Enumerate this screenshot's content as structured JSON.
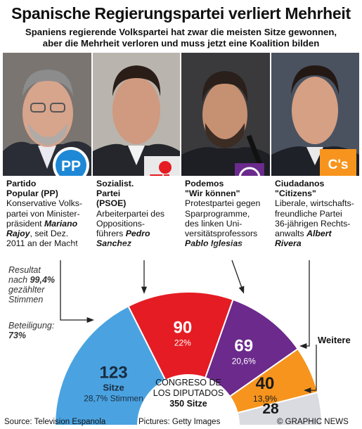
{
  "header": {
    "title": "Spanische Regierungspartei verliert Mehrheit",
    "subtitle_line1": "Spaniens regierende Volkspartei hat zwar die meisten Sitze gewonnen,",
    "subtitle_line2": "aber die Mehrheit verloren und muss jetzt eine Koalition bilden"
  },
  "parties": [
    {
      "name_line1": "Partido",
      "name_line2": "Popular (PP)",
      "desc_line1": "Konservative Volks-",
      "desc_line2": "partei von Minister-",
      "desc_line3": "präsident ",
      "desc_name1": "Mariano",
      "desc_name2": "Rajoy",
      "desc_line5": ", seit Dez.",
      "desc_line6": "2011 an der Macht",
      "logo_text": "PP",
      "color": "#4aa3e0"
    },
    {
      "name_line1": "Sozialist.",
      "name_line2": "Partei",
      "name_line3": "(PSOE)",
      "desc_line1": "Arbeiterpartei des",
      "desc_line2": "Oppositions-",
      "desc_line3": "führers ",
      "desc_name1": "Pedro",
      "desc_name2": "Sanchez",
      "color": "#e51c23"
    },
    {
      "name_line1": "Podemos",
      "name_line2": "\"Wir können\"",
      "desc_line1": "Protestpartei gegen",
      "desc_line2": "Sparprogramme,",
      "desc_line3": "des linken Uni-",
      "desc_line4": "versitätsprofessors",
      "desc_name": "Pablo Iglesias",
      "color": "#6b2a8c"
    },
    {
      "name_line1": "Ciudadanos",
      "name_line2": "\"Citizens\"",
      "desc_line1": "Liberale, wirtschafts-",
      "desc_line2": "freundliche Partei",
      "desc_line3": "36-jährigen Rechts-",
      "desc_line4": "anwalts ",
      "desc_name1": "Albert",
      "desc_name2": "Rivera",
      "logo_text": "C's",
      "color": "#f7941d"
    }
  ],
  "result_note": {
    "line1": "Resultat",
    "line2a": "nach ",
    "line2b": "99,4%",
    "line3": "gezählter",
    "line4": "Stimmen"
  },
  "turnout": {
    "label": "Beteiligung:",
    "value": "73%"
  },
  "chart_data": {
    "type": "pie",
    "subtype": "half-donut (parliament)",
    "center_line1": "CONGRESO DE",
    "center_line2": "LOS DIPUTADOS",
    "center_total": "350 Sitze",
    "slices": [
      {
        "party": "PP",
        "seats": 123,
        "seats_label": "123",
        "unit": "Sitze",
        "percent_label": "28,7% Stimmen",
        "color": "#4aa3e0"
      },
      {
        "party": "PSOE",
        "seats": 90,
        "seats_label": "90",
        "percent_label": "22%",
        "color": "#e51c23"
      },
      {
        "party": "Podemos",
        "seats": 69,
        "seats_label": "69",
        "percent_label": "20,6%",
        "color": "#6b2a8c"
      },
      {
        "party": "Ciudadanos",
        "seats": 40,
        "seats_label": "40",
        "percent_label": "13,9%",
        "color": "#f7941d"
      },
      {
        "party": "Weitere",
        "seats": 28,
        "seats_label": "28",
        "percent_label": "",
        "color": "#d9dbe0"
      }
    ],
    "weitere_label": "Weitere"
  },
  "footer": {
    "source": "Source: Television Espanola",
    "pictures": "Pictures: Getty Images",
    "credit": "© GRAPHIC NEWS"
  },
  "watermark": "GRAPHIC NEWS"
}
